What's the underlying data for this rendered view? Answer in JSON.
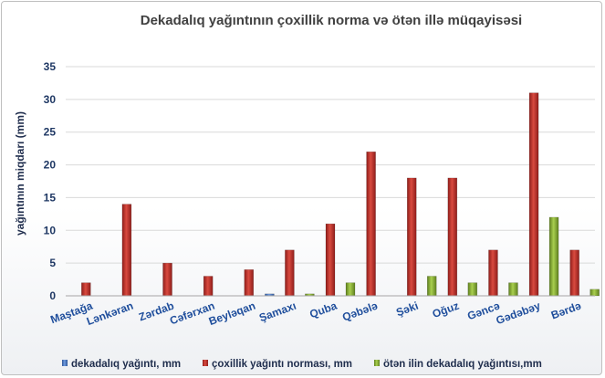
{
  "chart_data": {
    "type": "bar",
    "title": "Dekadalıq yağıntının çoxillik norma  və ötən illə müqayisəsi",
    "ylabel": "yağıntının miqdarı (mm)",
    "xlabel": "",
    "ylim": [
      0,
      35
    ],
    "yticks": [
      0,
      5,
      10,
      15,
      20,
      25,
      30,
      35
    ],
    "grid": true,
    "legend_position": "bottom",
    "categories": [
      "Maştağa",
      "Lənkəran",
      "Zərdab",
      "Cəfərxan",
      "Beyləqan",
      "Şamaxı",
      "Quba",
      "Qəbələ",
      "Şəki",
      "Oğuz",
      "Gəncə",
      "Gədəbəy",
      "Bərdə"
    ],
    "series": [
      {
        "name": "dekadalıq yağıntı, mm",
        "color": "#4472c4",
        "values": [
          0,
          0,
          0,
          0,
          0,
          0.3,
          0,
          0,
          0,
          0,
          0,
          0,
          0
        ]
      },
      {
        "name": "çoxillik yağıntı norması, mm",
        "color": "#c0312b",
        "values": [
          2,
          14,
          5,
          3,
          4,
          7,
          11,
          22,
          18,
          18,
          7,
          31,
          7
        ]
      },
      {
        "name": "ötən ilin dekadalıq yağıntısı,mm",
        "color": "#8db33a",
        "values": [
          0,
          0,
          0,
          0,
          0,
          0.3,
          2,
          0,
          3,
          2,
          2,
          12,
          1
        ]
      }
    ]
  }
}
